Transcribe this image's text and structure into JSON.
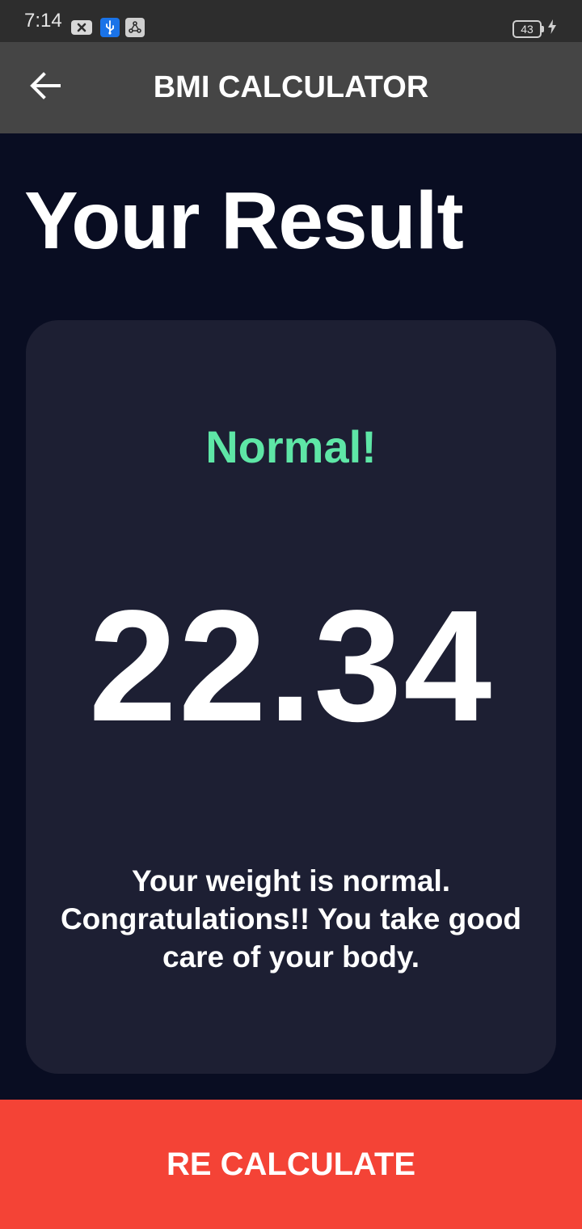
{
  "status_bar": {
    "time": "7:14",
    "battery_level": "43",
    "icons": [
      "notification-x-icon",
      "usb-icon",
      "share-icon"
    ],
    "charging_icon": "charging-bolt-icon"
  },
  "app_bar": {
    "back_icon": "arrow-back-icon",
    "title": "BMI CALCULATOR"
  },
  "page": {
    "title": "Your Result"
  },
  "result": {
    "status": "Normal!",
    "bmi": "22.34",
    "message": "Your weight is normal. Congratulations!! You take good care of your body."
  },
  "actions": {
    "recalculate_label": "RE CALCULATE"
  },
  "colors": {
    "background": "#090d22",
    "app_bar": "#454545",
    "card": "#1d1f33",
    "status_accent": "#5ee6a6",
    "button": "#f44336"
  }
}
